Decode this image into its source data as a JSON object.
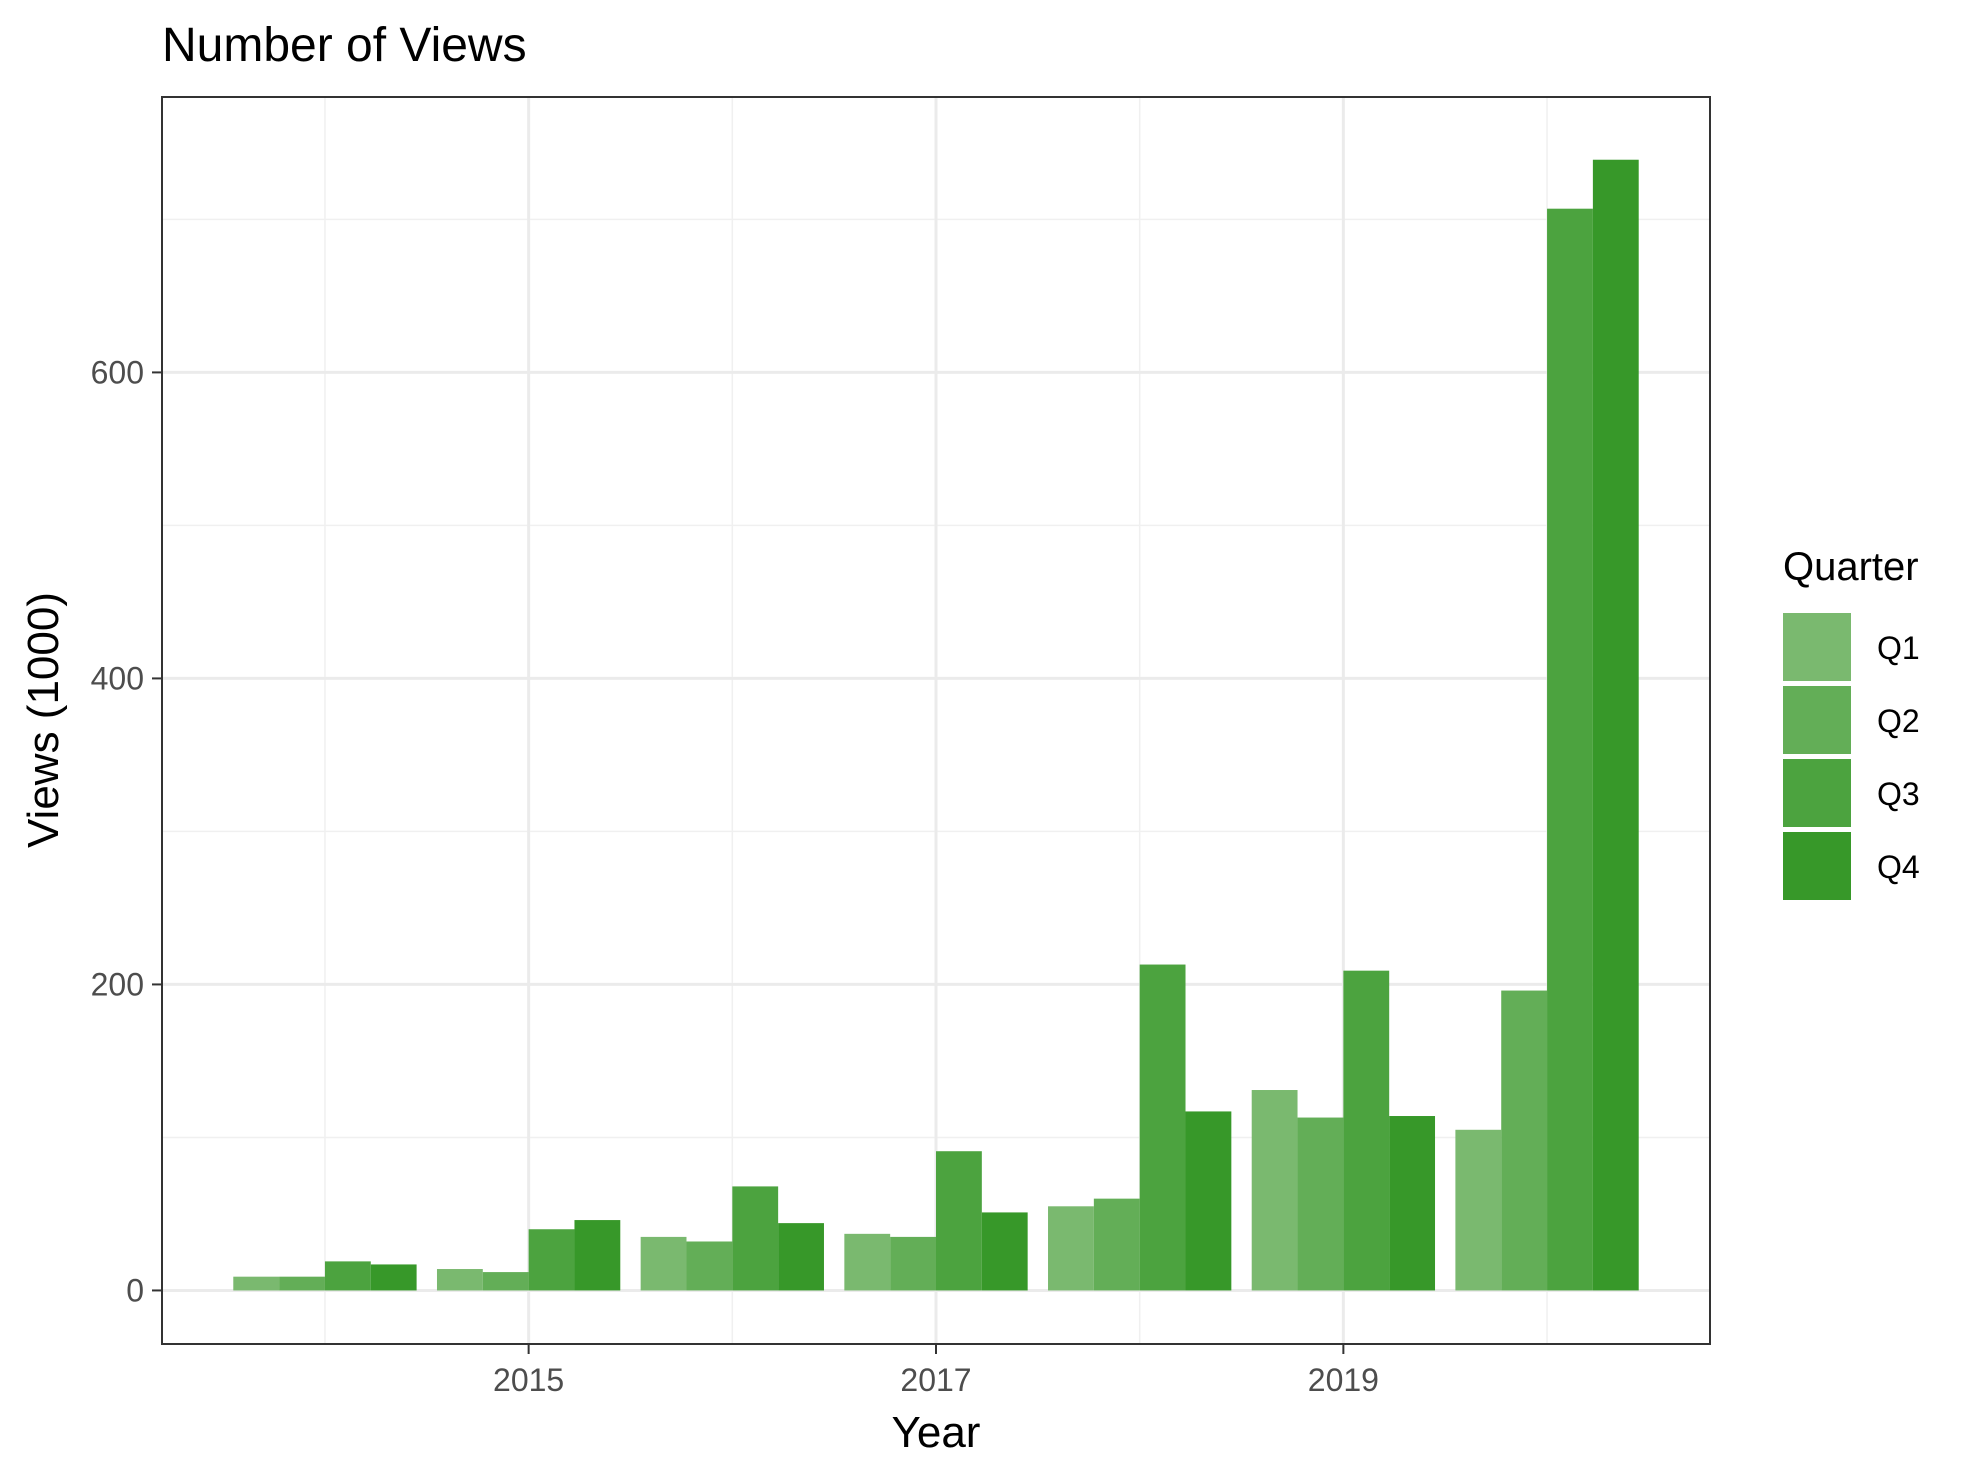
{
  "chart_data": {
    "type": "bar",
    "title": "Number of Views",
    "xlabel": "Year",
    "ylabel": "Views (1000)",
    "categories": [
      2014,
      2015,
      2016,
      2017,
      2018,
      2019,
      2020
    ],
    "x_ticks": [
      2015,
      2017,
      2019
    ],
    "y_ticks": [
      0,
      200,
      400,
      600
    ],
    "xlim": [
      2013.2,
      2020.8
    ],
    "ylim": [
      -35,
      780
    ],
    "grid": true,
    "legend": {
      "title": "Quarter",
      "position": "right"
    },
    "series": [
      {
        "name": "Q1",
        "color": "#7ab96f",
        "values": [
          9,
          14,
          35,
          37,
          55,
          131,
          105
        ]
      },
      {
        "name": "Q2",
        "color": "#63ae57",
        "values": [
          9,
          12,
          32,
          35,
          60,
          113,
          196
        ]
      },
      {
        "name": "Q3",
        "color": "#4ca33f",
        "values": [
          19,
          40,
          68,
          91,
          213,
          209,
          707
        ]
      },
      {
        "name": "Q4",
        "color": "#379829",
        "values": [
          17,
          46,
          44,
          51,
          117,
          114,
          739
        ]
      }
    ]
  }
}
